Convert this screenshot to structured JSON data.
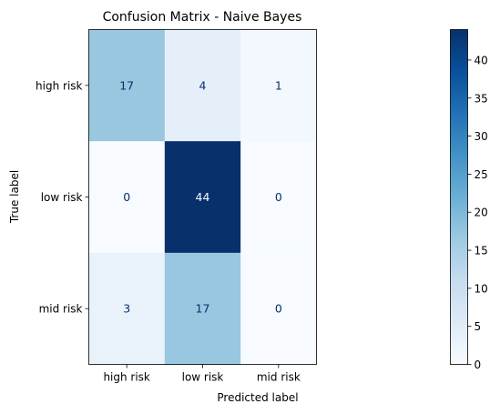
{
  "chart_data": {
    "type": "heatmap",
    "title": "Confusion Matrix - Naive Bayes",
    "xlabel": "Predicted label",
    "ylabel": "True label",
    "x_categories": [
      "high risk",
      "low risk",
      "mid risk"
    ],
    "y_categories": [
      "high risk",
      "low risk",
      "mid risk"
    ],
    "values": [
      [
        17,
        4,
        1
      ],
      [
        0,
        44,
        0
      ],
      [
        3,
        17,
        0
      ]
    ],
    "colormap": "Blues",
    "colorbar": {
      "range": [
        0,
        44
      ],
      "ticks": [
        0,
        5,
        10,
        15,
        20,
        25,
        30,
        35,
        40
      ]
    },
    "grid": false
  }
}
